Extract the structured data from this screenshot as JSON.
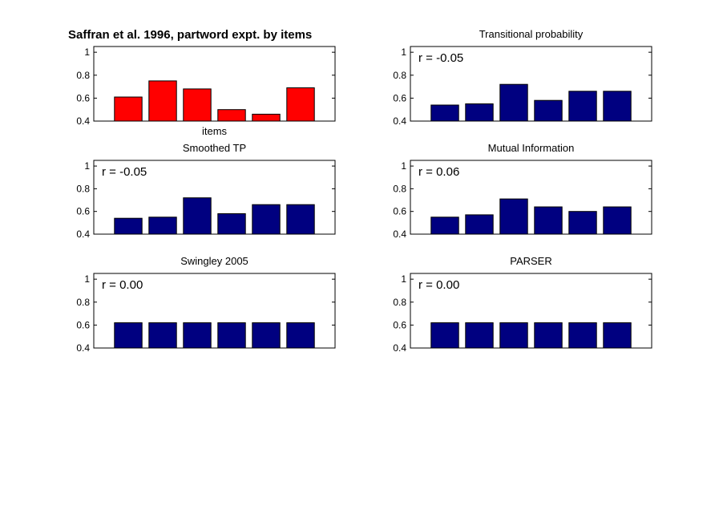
{
  "chart_data": [
    {
      "type": "bar",
      "title": "Saffran et al. 1996, partword expt. by items",
      "xlabel": "items",
      "ylim": [
        0.4,
        1.05
      ],
      "yticks": [
        "0.4",
        "0.6",
        "0.8",
        "1"
      ],
      "values": [
        0.61,
        0.75,
        0.68,
        0.5,
        0.46,
        0.69
      ],
      "color": "#ff0000",
      "annotation": ""
    },
    {
      "type": "bar",
      "title": "Transitional probability",
      "xlabel": "",
      "ylim": [
        0.4,
        1.05
      ],
      "yticks": [
        "0.4",
        "0.6",
        "0.8",
        "1"
      ],
      "values": [
        0.54,
        0.55,
        0.72,
        0.58,
        0.66,
        0.66
      ],
      "color": "#000080",
      "annotation": "r = -0.05"
    },
    {
      "type": "bar",
      "title": "Smoothed TP",
      "xlabel": "",
      "ylim": [
        0.4,
        1.05
      ],
      "yticks": [
        "0.4",
        "0.6",
        "0.8",
        "1"
      ],
      "values": [
        0.54,
        0.55,
        0.72,
        0.58,
        0.66,
        0.66
      ],
      "color": "#000080",
      "annotation": "r = -0.05"
    },
    {
      "type": "bar",
      "title": "Mutual Information",
      "xlabel": "",
      "ylim": [
        0.4,
        1.05
      ],
      "yticks": [
        "0.4",
        "0.6",
        "0.8",
        "1"
      ],
      "values": [
        0.55,
        0.57,
        0.71,
        0.64,
        0.6,
        0.64
      ],
      "color": "#000080",
      "annotation": "r = 0.06"
    },
    {
      "type": "bar",
      "title": "Swingley 2005",
      "xlabel": "",
      "ylim": [
        0.4,
        1.05
      ],
      "yticks": [
        "0.4",
        "0.6",
        "0.8",
        "1"
      ],
      "values": [
        0.62,
        0.62,
        0.62,
        0.62,
        0.62,
        0.62
      ],
      "color": "#000080",
      "annotation": "r = 0.00"
    },
    {
      "type": "bar",
      "title": "PARSER",
      "xlabel": "",
      "ylim": [
        0.4,
        1.05
      ],
      "yticks": [
        "0.4",
        "0.6",
        "0.8",
        "1"
      ],
      "values": [
        0.62,
        0.62,
        0.62,
        0.62,
        0.62,
        0.62
      ],
      "color": "#000080",
      "annotation": "r = 0.00"
    }
  ]
}
